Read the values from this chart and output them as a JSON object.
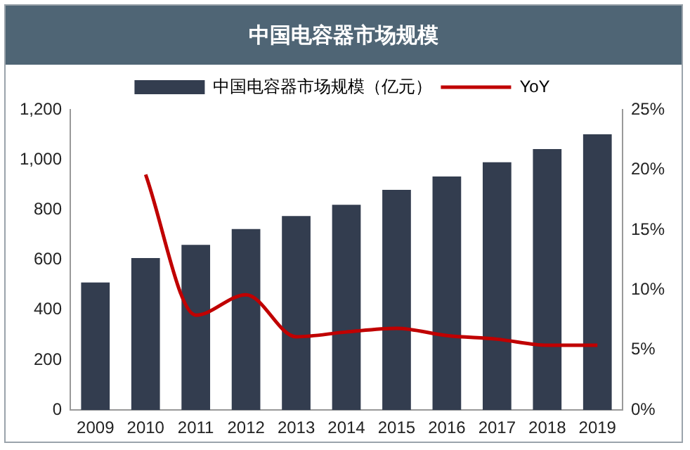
{
  "chart_data": {
    "type": "bar",
    "title": "中国电容器市场规模",
    "categories": [
      "2009",
      "2010",
      "2011",
      "2012",
      "2013",
      "2014",
      "2015",
      "2016",
      "2017",
      "2018",
      "2019"
    ],
    "series": [
      {
        "name": "中国电容器市场规模（亿元）",
        "color": "#333d4f",
        "values": [
          510,
          607,
          660,
          723,
          775,
          820,
          880,
          933,
          990,
          1043,
          1102
        ]
      },
      {
        "name": "YoY",
        "type": "line",
        "axis": "y2",
        "color": "#c00000",
        "values": [
          null,
          19.6,
          7.9,
          9.6,
          6.1,
          6.5,
          6.8,
          6.2,
          5.9,
          5.4,
          5.4
        ]
      }
    ],
    "ylim": [
      0,
      1200
    ],
    "yticks": [
      0,
      200,
      400,
      600,
      800,
      {
        "value": 1000,
        "label": "1,000"
      },
      {
        "value": 1200,
        "label": "1,200"
      }
    ],
    "y2lim": [
      0,
      25
    ],
    "y2ticks": [
      {
        "value": 0,
        "label": "0%"
      },
      {
        "value": 5,
        "label": "5%"
      },
      {
        "value": 10,
        "label": "10%"
      },
      {
        "value": 15,
        "label": "15%"
      },
      {
        "value": 20,
        "label": "20%"
      },
      {
        "value": 25,
        "label": "25%"
      }
    ],
    "grid": false,
    "legend": "top",
    "marker": "none"
  }
}
